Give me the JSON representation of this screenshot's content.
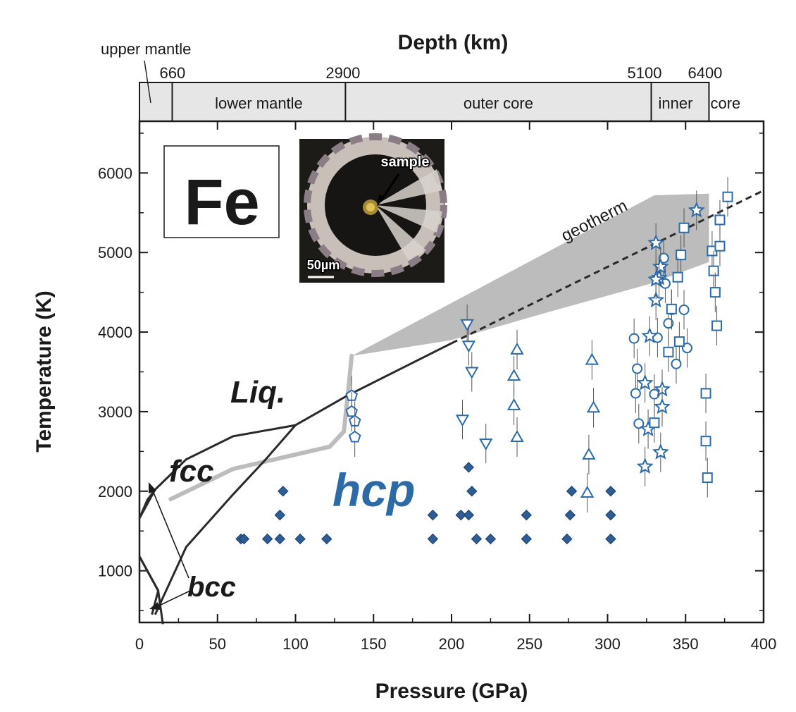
{
  "chart_data": {
    "type": "scatter",
    "title": "",
    "xlabel": "Pressure (GPa)",
    "ylabel": "Temperature (K)",
    "xlim": [
      0,
      400
    ],
    "ylim": [
      350,
      6650
    ],
    "x_ticks": [
      "0",
      "50",
      "100",
      "150",
      "200",
      "250",
      "300",
      "350",
      "400"
    ],
    "y_ticks": [
      "1000",
      "2000",
      "3000",
      "4000",
      "5000",
      "6000"
    ],
    "top_axis": {
      "label": "Depth (km)",
      "ticks": [
        "660",
        "2900",
        "5100",
        "6400"
      ],
      "zones": [
        "upper mantle",
        "lower mantle",
        "outer core",
        "inner",
        "core"
      ],
      "zone_boundaries_gpa": [
        0,
        21,
        132,
        328,
        365
      ]
    },
    "element_label": "Fe",
    "phase_labels": [
      "Liq.",
      "fcc",
      "hcp",
      "bcc"
    ],
    "curve_labels": [
      "geotherm"
    ],
    "inset": {
      "labels": [
        "sample",
        "50µm"
      ]
    },
    "phase_boundaries": {
      "melting_curve": [
        [
          0,
          1660
        ],
        [
          10,
          2020
        ],
        [
          30,
          2400
        ],
        [
          60,
          2690
        ],
        [
          100,
          2830
        ],
        [
          133,
          3200
        ],
        [
          200,
          3860
        ]
      ],
      "melting_extrapolated": [
        [
          200,
          3860
        ],
        [
          400,
          5780
        ]
      ],
      "fcc_hcp_boundary": [
        [
          10,
          450
        ],
        [
          30,
          1300
        ],
        [
          60,
          1960
        ],
        [
          80,
          2380
        ],
        [
          100,
          2830
        ]
      ],
      "bcc_fcc_boundary": [
        [
          0,
          1660
        ],
        [
          5,
          1890
        ],
        [
          10,
          2020
        ]
      ],
      "bcc_hcp_boundary": [
        [
          0,
          1180
        ],
        [
          12,
          750
        ],
        [
          8,
          450
        ]
      ],
      "bcc_lower_branch": [
        [
          0,
          1180
        ],
        [
          12,
          750
        ],
        [
          15,
          330
        ]
      ]
    },
    "geotherm_band": {
      "upper": [
        [
          20,
          1900
        ],
        [
          60,
          2280
        ],
        [
          122,
          2560
        ],
        [
          131,
          2750
        ],
        [
          134,
          3300
        ],
        [
          136,
          3700
        ],
        [
          330,
          5720
        ],
        [
          365,
          5740
        ]
      ],
      "lower": [
        [
          20,
          1900
        ],
        [
          60,
          2280
        ],
        [
          122,
          2560
        ],
        [
          131,
          2750
        ],
        [
          134,
          3300
        ],
        [
          136,
          3700
        ],
        [
          200,
          3900
        ],
        [
          260,
          4240
        ],
        [
          326,
          4600
        ],
        [
          365,
          4880
        ]
      ]
    },
    "series": [
      {
        "marker": "diamond-filled",
        "points": [
          [
            65,
            1400
          ],
          [
            67,
            1400
          ],
          [
            82,
            1400
          ],
          [
            90,
            1400
          ],
          [
            103,
            1400
          ],
          [
            120,
            1400
          ],
          [
            90,
            1700
          ],
          [
            92,
            2000
          ],
          [
            188,
            1400
          ],
          [
            188,
            1700
          ],
          [
            206,
            1700
          ],
          [
            211,
            1700
          ],
          [
            211,
            2300
          ],
          [
            213,
            2000
          ],
          [
            216,
            1400
          ],
          [
            225,
            1400
          ],
          [
            248,
            1400
          ],
          [
            248,
            1700
          ],
          [
            274,
            1400
          ],
          [
            276,
            1700
          ],
          [
            277,
            2000
          ],
          [
            302,
            1400
          ],
          [
            302,
            1700
          ],
          [
            302,
            2000
          ]
        ]
      },
      {
        "marker": "pentagon-open",
        "points": [
          [
            136,
            3200
          ],
          [
            136,
            3000
          ],
          [
            138,
            2880
          ],
          [
            138,
            2680
          ]
        ]
      },
      {
        "marker": "triangle-down-open",
        "points": [
          [
            210,
            4100
          ],
          [
            211,
            3830
          ],
          [
            213,
            3500
          ],
          [
            207,
            2900
          ],
          [
            222,
            2600
          ]
        ]
      },
      {
        "marker": "triangle-up-open",
        "points": [
          [
            242,
            3780
          ],
          [
            240,
            3450
          ],
          [
            240,
            3080
          ],
          [
            242,
            2680
          ],
          [
            290,
            3650
          ],
          [
            291,
            3050
          ],
          [
            288,
            2460
          ],
          [
            287,
            1980
          ]
        ]
      },
      {
        "marker": "circle-open",
        "points": [
          [
            317,
            3920
          ],
          [
            319,
            3540
          ],
          [
            318,
            3230
          ],
          [
            320,
            2850
          ],
          [
            330,
            3220
          ],
          [
            332,
            3930
          ],
          [
            336,
            4930
          ],
          [
            337,
            4610
          ],
          [
            339,
            4110
          ],
          [
            341,
            4280
          ],
          [
            344,
            3600
          ],
          [
            349,
            4280
          ],
          [
            351,
            3800
          ]
        ]
      },
      {
        "marker": "star-open",
        "points": [
          [
            331,
            5120
          ],
          [
            334,
            4820
          ],
          [
            333,
            4680
          ],
          [
            331,
            4400
          ],
          [
            327,
            3950
          ],
          [
            324,
            3360
          ],
          [
            326,
            2780
          ],
          [
            324,
            2310
          ],
          [
            335,
            3280
          ],
          [
            335,
            3060
          ],
          [
            334,
            2490
          ],
          [
            357,
            5530
          ],
          [
            331,
            4660
          ]
        ]
      },
      {
        "marker": "square-open",
        "points": [
          [
            377,
            5700
          ],
          [
            372,
            5410
          ],
          [
            349,
            5310
          ],
          [
            347,
            4970
          ],
          [
            367,
            5020
          ],
          [
            372,
            5080
          ],
          [
            368,
            4770
          ],
          [
            369,
            4500
          ],
          [
            370,
            4080
          ],
          [
            345,
            4690
          ],
          [
            341,
            4290
          ],
          [
            339,
            3750
          ],
          [
            346,
            3880
          ],
          [
            330,
            2860
          ],
          [
            363,
            3230
          ],
          [
            363,
            2630
          ],
          [
            364,
            2170
          ]
        ]
      }
    ]
  }
}
